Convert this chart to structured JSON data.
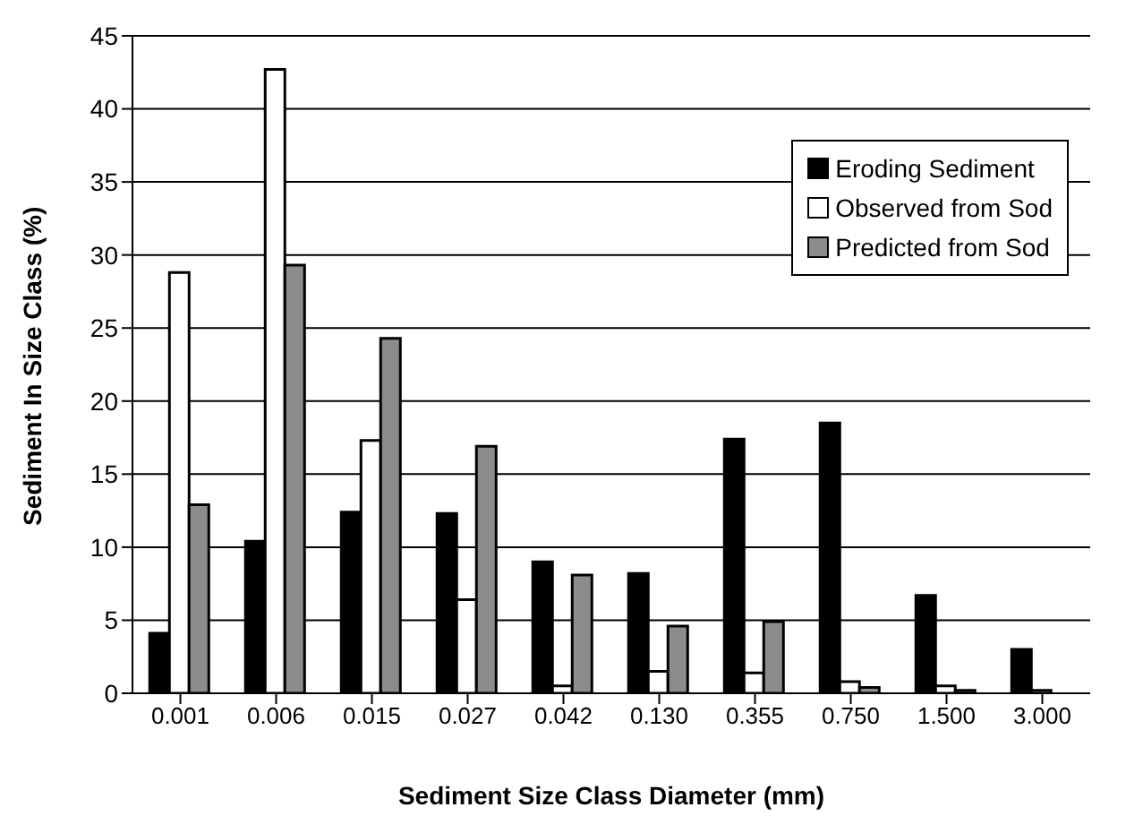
{
  "chart_data": {
    "type": "bar",
    "xlabel": "Sediment Size Class Diameter (mm)",
    "ylabel": "Sediment In Size Class (%)",
    "categories": [
      "0.001",
      "0.006",
      "0.015",
      "0.027",
      "0.042",
      "0.130",
      "0.355",
      "0.750",
      "1.500",
      "3.000"
    ],
    "series": [
      {
        "name": "Eroding Sediment",
        "color": "#000000",
        "values": [
          4.1,
          10.4,
          12.4,
          12.3,
          9.0,
          8.2,
          17.4,
          18.5,
          6.7,
          3.0
        ]
      },
      {
        "name": "Observed from Sod",
        "color": "#ffffff",
        "values": [
          28.8,
          42.7,
          17.3,
          6.4,
          0.5,
          1.5,
          1.4,
          0.8,
          0.5,
          0.2
        ]
      },
      {
        "name": "Predicted from Sod",
        "color": "#8c8c8c",
        "values": [
          12.9,
          29.3,
          24.3,
          16.9,
          8.1,
          4.6,
          4.9,
          0.4,
          0.2,
          0
        ]
      }
    ],
    "ylim": [
      0,
      45
    ],
    "yticks": [
      0,
      5,
      10,
      15,
      20,
      25,
      30,
      35,
      40,
      45
    ],
    "grid": "y",
    "legend": "top right"
  }
}
